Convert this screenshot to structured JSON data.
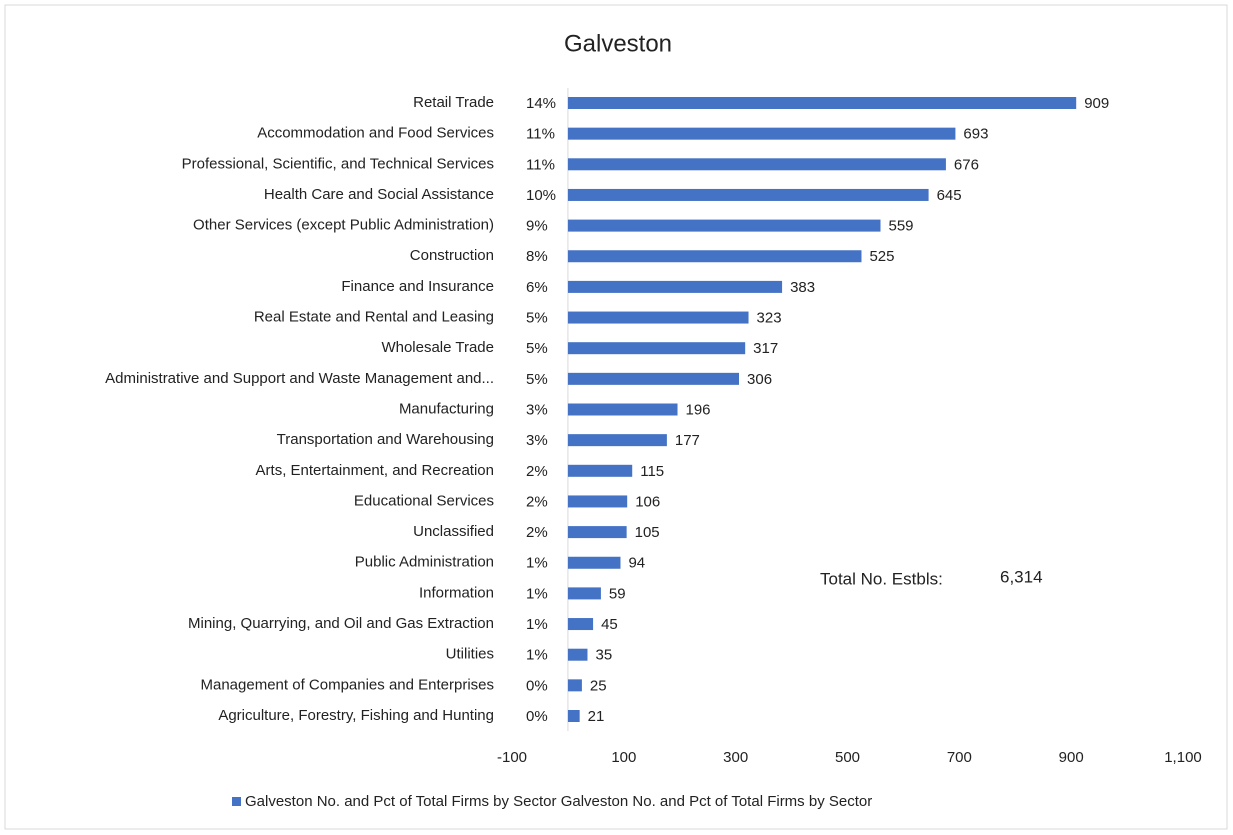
{
  "chart_data": {
    "type": "bar",
    "orientation": "horizontal",
    "title": "Galveston",
    "categories": [
      "Retail Trade",
      "Accommodation and Food Services",
      "Professional, Scientific, and Technical Services",
      "Health Care and Social Assistance",
      "Other Services (except Public Administration)",
      "Construction",
      "Finance and Insurance",
      "Real Estate and Rental and Leasing",
      "Wholesale Trade",
      "Administrative and Support and Waste Management and...",
      "Manufacturing",
      "Transportation and Warehousing",
      "Arts, Entertainment, and Recreation",
      "Educational Services",
      "Unclassified",
      "Public Administration",
      "Information",
      "Mining, Quarrying, and Oil and Gas Extraction",
      "Utilities",
      "Management of Companies and Enterprises",
      "Agriculture, Forestry, Fishing and Hunting"
    ],
    "percent_labels": [
      "14%",
      "11%",
      "11%",
      "10%",
      "9%",
      "8%",
      "6%",
      "5%",
      "5%",
      "5%",
      "3%",
      "3%",
      "2%",
      "2%",
      "2%",
      "1%",
      "1%",
      "1%",
      "1%",
      "0%",
      "0%"
    ],
    "series": [
      {
        "name": "Galveston No. and Pct of Total Firms by Sector Galveston No. and Pct of Total Firms by Sector",
        "color": "#4472c4",
        "values": [
          909,
          693,
          676,
          645,
          559,
          525,
          383,
          323,
          317,
          306,
          196,
          177,
          115,
          106,
          105,
          94,
          59,
          45,
          35,
          25,
          21
        ]
      }
    ],
    "xlim": [
      -100,
      1100
    ],
    "xticks": [
      -100,
      100,
      300,
      500,
      700,
      900,
      {
        "value": 1100,
        "label": "1,100"
      }
    ],
    "annotations": [
      {
        "label": "Total No. Estbls:",
        "value": "6,314"
      }
    ],
    "legend": "bottom"
  }
}
